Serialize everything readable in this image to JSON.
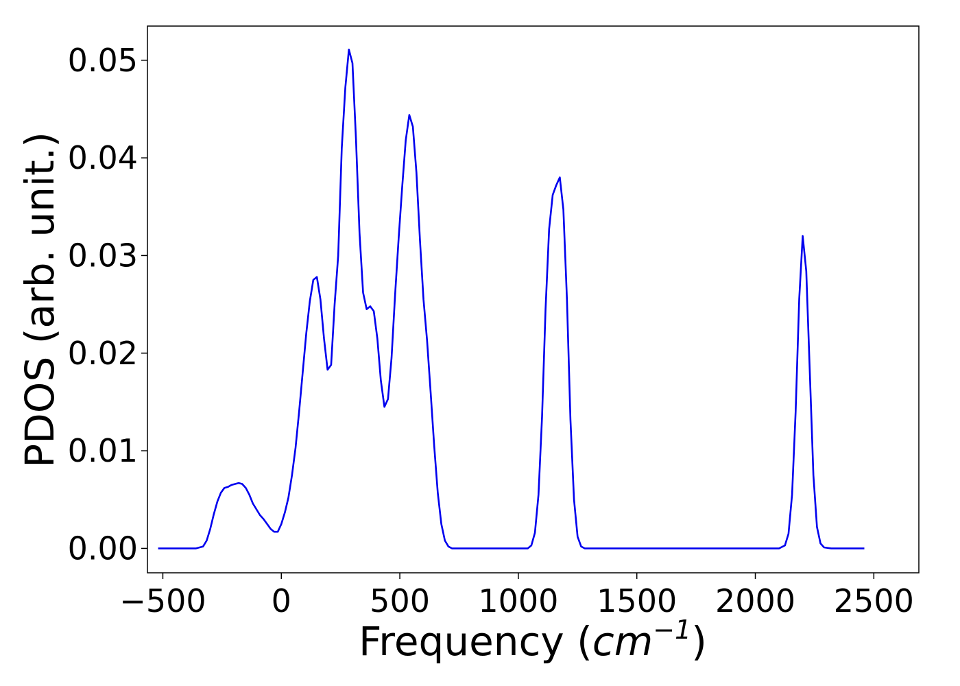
{
  "chart_data": {
    "type": "line",
    "title": "",
    "xlabel": "Frequency",
    "xlabel_unit_base": "cm",
    "xlabel_unit_exp": "−1",
    "ylabel": "PDOS (arb. unit.)",
    "xlim": [
      -565,
      2690
    ],
    "ylim": [
      -0.0025,
      0.0535
    ],
    "x_ticks": [
      -500,
      0,
      500,
      1000,
      1500,
      2000,
      2500
    ],
    "x_tick_labels": [
      "−500",
      "0",
      "500",
      "1000",
      "1500",
      "2000",
      "2500"
    ],
    "y_ticks": [
      0.0,
      0.01,
      0.02,
      0.03,
      0.04,
      0.05
    ],
    "y_tick_labels": [
      "0.00",
      "0.01",
      "0.02",
      "0.03",
      "0.04",
      "0.05"
    ],
    "grid": false,
    "legend": "none",
    "series": [
      {
        "color": "#0000ee",
        "x": [
          -520,
          -460,
          -400,
          -360,
          -330,
          -315,
          -300,
          -285,
          -270,
          -255,
          -240,
          -225,
          -210,
          -195,
          -180,
          -165,
          -150,
          -135,
          -120,
          -105,
          -90,
          -75,
          -60,
          -45,
          -30,
          -15,
          0,
          15,
          30,
          45,
          60,
          75,
          90,
          105,
          120,
          135,
          150,
          165,
          180,
          195,
          210,
          225,
          240,
          255,
          270,
          285,
          300,
          315,
          330,
          345,
          360,
          375,
          390,
          405,
          420,
          435,
          450,
          465,
          480,
          495,
          510,
          525,
          540,
          555,
          570,
          585,
          600,
          615,
          630,
          645,
          660,
          675,
          690,
          705,
          720,
          800,
          900,
          1000,
          1040,
          1055,
          1070,
          1085,
          1100,
          1115,
          1130,
          1145,
          1160,
          1175,
          1190,
          1205,
          1220,
          1235,
          1250,
          1265,
          1280,
          1300,
          1500,
          1800,
          2100,
          2125,
          2140,
          2155,
          2170,
          2185,
          2200,
          2215,
          2230,
          2245,
          2260,
          2275,
          2290,
          2320,
          2400,
          2460
        ],
        "y": [
          0.0,
          0.0,
          0.0,
          0.0,
          0.0002,
          0.0008,
          0.002,
          0.0035,
          0.0048,
          0.0057,
          0.0062,
          0.0063,
          0.0065,
          0.0066,
          0.0067,
          0.0066,
          0.0062,
          0.0055,
          0.0046,
          0.004,
          0.0034,
          0.003,
          0.0025,
          0.002,
          0.0017,
          0.0017,
          0.0025,
          0.0037,
          0.0052,
          0.0075,
          0.0103,
          0.014,
          0.018,
          0.022,
          0.0253,
          0.0275,
          0.0278,
          0.0255,
          0.0215,
          0.0183,
          0.0188,
          0.025,
          0.03,
          0.041,
          0.0472,
          0.0511,
          0.0497,
          0.042,
          0.0323,
          0.0262,
          0.0245,
          0.0248,
          0.0243,
          0.0215,
          0.0172,
          0.0145,
          0.0153,
          0.0195,
          0.026,
          0.0318,
          0.037,
          0.0418,
          0.0444,
          0.0432,
          0.0385,
          0.0315,
          0.0255,
          0.0213,
          0.016,
          0.0105,
          0.0057,
          0.0025,
          0.0008,
          0.0002,
          0.0,
          0.0,
          0.0,
          0.0,
          0.0,
          0.0003,
          0.0016,
          0.0055,
          0.0135,
          0.0245,
          0.0327,
          0.0362,
          0.0372,
          0.038,
          0.0347,
          0.0255,
          0.0132,
          0.005,
          0.0012,
          0.0002,
          0.0,
          0.0,
          0.0,
          0.0,
          0.0,
          0.0003,
          0.0015,
          0.0055,
          0.014,
          0.0255,
          0.032,
          0.0284,
          0.018,
          0.0075,
          0.0022,
          0.0005,
          0.0001,
          0.0,
          0.0,
          0.0
        ]
      }
    ]
  }
}
